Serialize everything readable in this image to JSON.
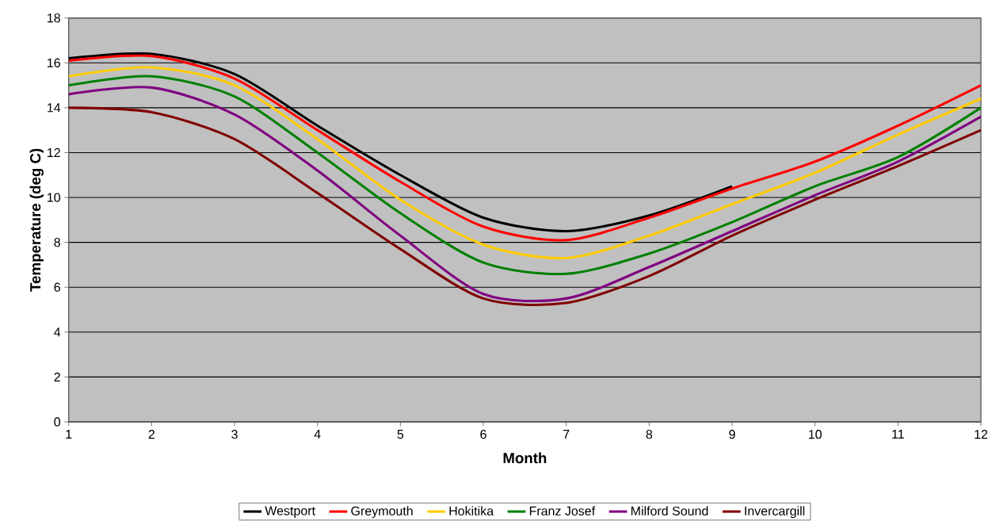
{
  "chart_data": {
    "type": "line",
    "xlabel": "Month",
    "ylabel": "Temperature (deg C)",
    "x": [
      1,
      2,
      3,
      4,
      5,
      6,
      7,
      8,
      9,
      10,
      11,
      12
    ],
    "series": [
      {
        "name": "Westport",
        "color": "#000000",
        "values": [
          16.2,
          16.4,
          15.5,
          13.2,
          11.0,
          9.1,
          8.5,
          9.2,
          10.5,
          null,
          null,
          null
        ]
      },
      {
        "name": "Greymouth",
        "color": "#ff0000",
        "values": [
          16.1,
          16.3,
          15.3,
          13.0,
          10.7,
          8.7,
          8.1,
          9.1,
          10.4,
          11.6,
          13.2,
          15.0
        ]
      },
      {
        "name": "Hokitika",
        "color": "#ffcc00",
        "values": [
          15.4,
          15.8,
          15.0,
          12.6,
          9.9,
          7.9,
          7.3,
          8.3,
          9.7,
          11.1,
          12.8,
          14.4
        ]
      },
      {
        "name": "Franz Josef",
        "color": "#008000",
        "values": [
          15.0,
          15.4,
          14.5,
          12.0,
          9.3,
          7.1,
          6.6,
          7.5,
          8.9,
          10.5,
          11.8,
          14.0
        ]
      },
      {
        "name": "Milford Sound",
        "color": "#800080",
        "values": [
          14.6,
          14.9,
          13.7,
          11.2,
          8.3,
          5.7,
          5.5,
          6.9,
          8.5,
          10.1,
          11.6,
          13.6
        ]
      },
      {
        "name": "Invercargill",
        "color": "#800000",
        "values": [
          14.0,
          13.8,
          12.6,
          10.2,
          7.7,
          5.5,
          5.3,
          6.5,
          8.3,
          9.9,
          11.4,
          13.0
        ]
      }
    ],
    "xlim": [
      1,
      12
    ],
    "ylim": [
      0,
      18
    ],
    "xticks": [
      1,
      2,
      3,
      4,
      5,
      6,
      7,
      8,
      9,
      10,
      11,
      12
    ],
    "yticks": [
      0,
      2,
      4,
      6,
      8,
      10,
      12,
      14,
      16,
      18
    ],
    "grid": "y",
    "legend": "bottom",
    "marker": "none",
    "line_style": "solid"
  }
}
